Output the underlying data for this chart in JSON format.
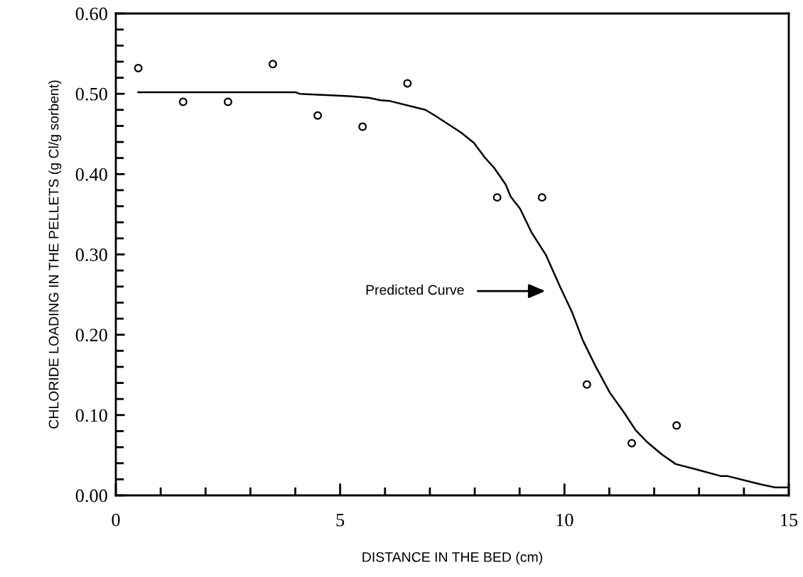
{
  "chart_data": {
    "type": "scatter",
    "xlabel": "DISTANCE IN THE BED (cm)",
    "ylabel": "CHLORIDE LOADING IN THE PELLETS (g Cl/g sorbent)",
    "xlim": [
      0,
      15
    ],
    "ylim": [
      0,
      0.6
    ],
    "xticks": [
      0,
      {
        "value": 1,
        "label": null
      },
      {
        "value": 2,
        "label": null
      },
      {
        "value": 3,
        "label": null
      },
      {
        "value": 4,
        "label": null
      },
      5,
      {
        "value": 6,
        "label": null
      },
      {
        "value": 7,
        "label": null
      },
      {
        "value": 8,
        "label": null
      },
      {
        "value": 9,
        "label": null
      },
      10,
      {
        "value": 11,
        "label": null
      },
      {
        "value": 12,
        "label": null
      },
      {
        "value": 13,
        "label": null
      },
      {
        "value": 14,
        "label": null
      },
      15
    ],
    "yticks": [
      {
        "value": 0,
        "label": "0.00"
      },
      {
        "value": 0.02,
        "label": null
      },
      {
        "value": 0.04,
        "label": null
      },
      {
        "value": 0.06,
        "label": null
      },
      {
        "value": 0.08,
        "label": null
      },
      {
        "value": 0.1,
        "label": "0.10"
      },
      {
        "value": 0.12,
        "label": null
      },
      {
        "value": 0.14,
        "label": null
      },
      {
        "value": 0.16,
        "label": null
      },
      {
        "value": 0.18,
        "label": null
      },
      {
        "value": 0.2,
        "label": "0.20"
      },
      {
        "value": 0.22,
        "label": null
      },
      {
        "value": 0.24,
        "label": null
      },
      {
        "value": 0.26,
        "label": null
      },
      {
        "value": 0.28,
        "label": null
      },
      {
        "value": 0.3,
        "label": "0.30"
      },
      {
        "value": 0.32,
        "label": null
      },
      {
        "value": 0.34,
        "label": null
      },
      {
        "value": 0.36,
        "label": null
      },
      {
        "value": 0.38,
        "label": null
      },
      {
        "value": 0.4,
        "label": "0.40"
      },
      {
        "value": 0.42,
        "label": null
      },
      {
        "value": 0.44,
        "label": null
      },
      {
        "value": 0.46,
        "label": null
      },
      {
        "value": 0.48,
        "label": null
      },
      {
        "value": 0.5,
        "label": "0.50"
      },
      {
        "value": 0.52,
        "label": null
      },
      {
        "value": 0.54,
        "label": null
      },
      {
        "value": 0.56,
        "label": null
      },
      {
        "value": 0.58,
        "label": null
      },
      {
        "value": 0.6,
        "label": "0.60"
      }
    ],
    "grid": false,
    "legend": false,
    "series": [
      {
        "marker": "circle",
        "color": "#000000",
        "x": [
          0.5,
          1.5,
          2.5,
          3.5,
          4.5,
          5.5,
          6.5,
          8.5,
          9.5,
          10.5,
          11.5,
          12.5
        ],
        "values": [
          0.532,
          0.49,
          0.49,
          0.537,
          0.473,
          0.459,
          0.513,
          0.371,
          0.371,
          0.138,
          0.065,
          0.087
        ]
      },
      {
        "type": "line",
        "marker": "none",
        "line_style": "solid",
        "color": "#000000",
        "x": [
          0.5,
          4.0,
          4.1,
          5.2,
          5.64,
          5.9,
          6.11,
          6.9,
          7.11,
          7.69,
          7.98,
          8.22,
          8.43,
          8.69,
          8.8,
          9.01,
          9.27,
          9.59,
          9.9,
          10.17,
          10.41,
          10.7,
          11.01,
          11.33,
          11.59,
          11.85,
          12.17,
          12.48,
          12.96,
          13.49,
          13.64,
          14.28,
          14.43,
          14.7,
          14.96
        ],
        "values": [
          0.502,
          0.502,
          0.5,
          0.497,
          0.495,
          0.492,
          0.491,
          0.48,
          0.473,
          0.452,
          0.439,
          0.421,
          0.408,
          0.387,
          0.372,
          0.357,
          0.327,
          0.299,
          0.26,
          0.228,
          0.193,
          0.16,
          0.128,
          0.103,
          0.081,
          0.066,
          0.051,
          0.039,
          0.032,
          0.024,
          0.024,
          0.015,
          0.013,
          0.01,
          0.01
        ]
      }
    ],
    "annotations": [
      "Predicted Curve"
    ]
  }
}
